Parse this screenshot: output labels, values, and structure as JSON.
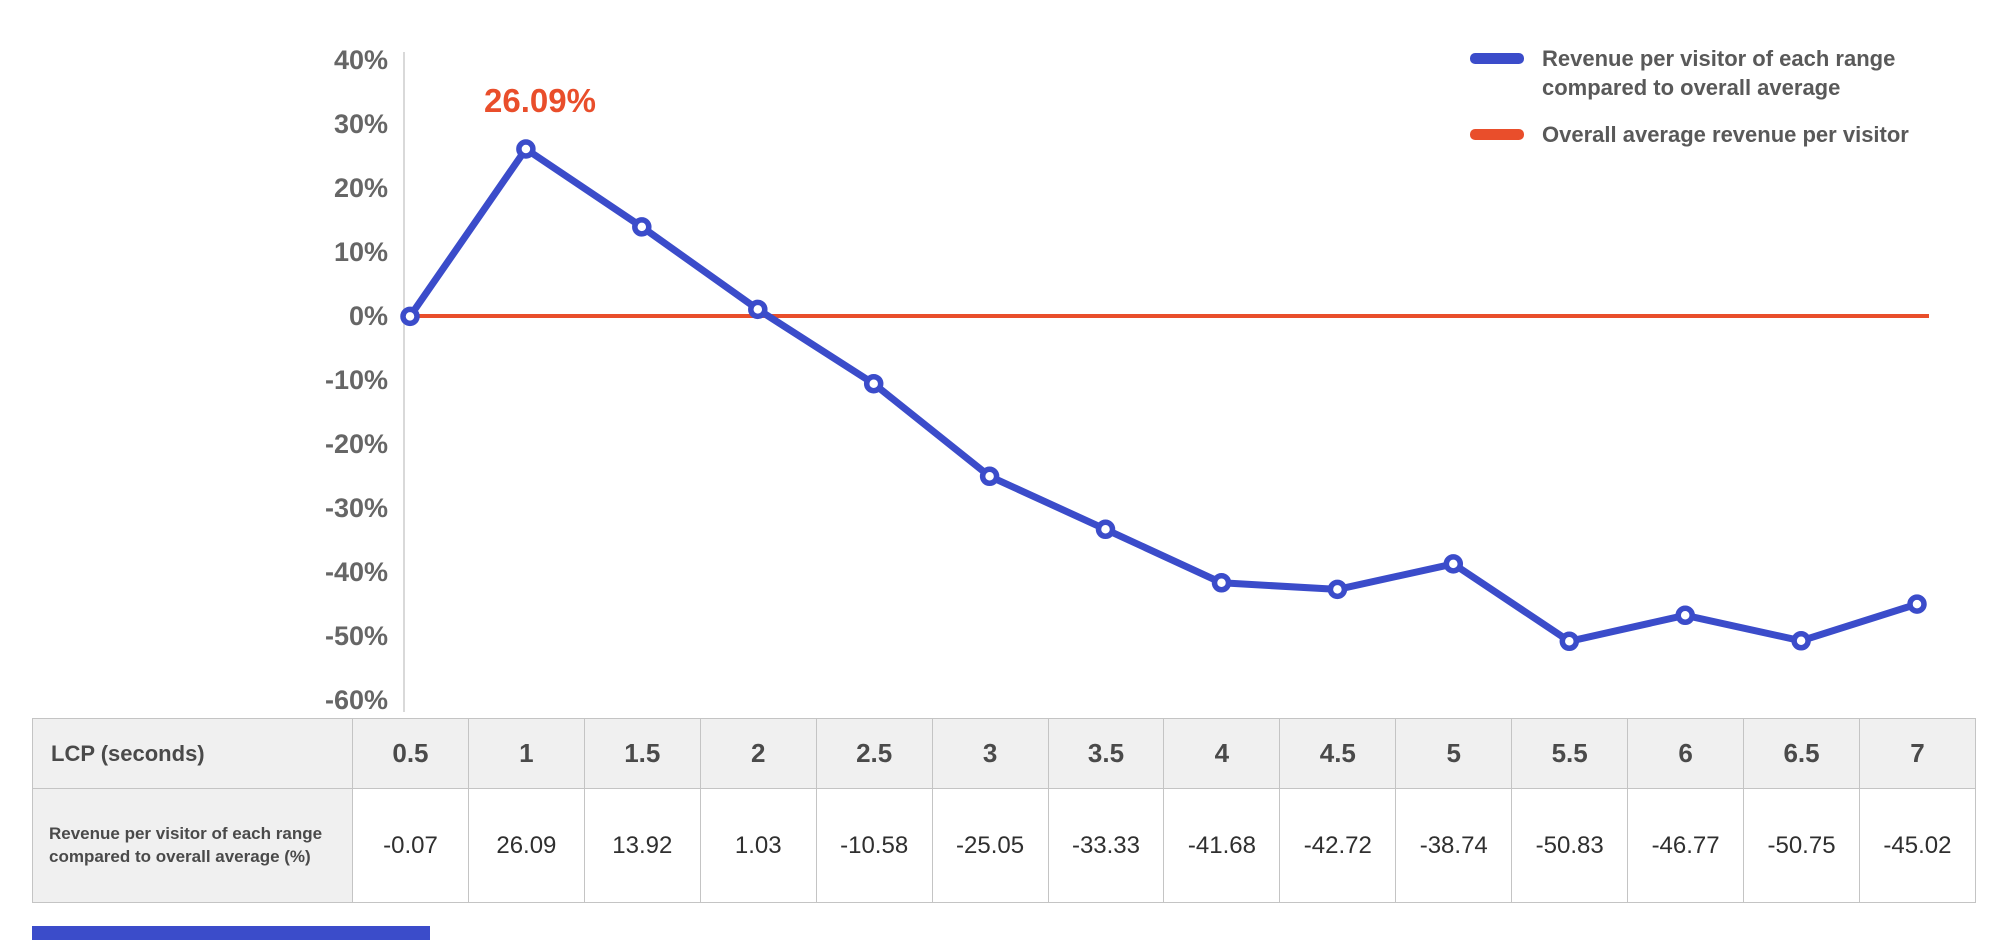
{
  "colors": {
    "blue": "#3b4cca",
    "red": "#e94e2b",
    "axis_text": "#666666",
    "axis_line": "#d9d9d9"
  },
  "chart_data": {
    "type": "line",
    "x": [
      0.5,
      1,
      1.5,
      2,
      2.5,
      3,
      3.5,
      4,
      4.5,
      5,
      5.5,
      6,
      6.5,
      7
    ],
    "xlabel": "LCP (seconds)",
    "ylabel": "",
    "ylim": [
      -60,
      40
    ],
    "yticks": [
      "40%",
      "30%",
      "20%",
      "10%",
      "0%",
      "-10%",
      "-20%",
      "-30%",
      "-40%",
      "-50%",
      "-60%"
    ],
    "grid": false,
    "legend_position": "top-right",
    "series": [
      {
        "name": "Revenue per visitor of each range compared to overall average",
        "color": "#3b4cca",
        "values": [
          -0.07,
          26.09,
          13.92,
          1.03,
          -10.58,
          -25.05,
          -33.33,
          -41.68,
          -42.72,
          -38.74,
          -50.83,
          -46.77,
          -50.75,
          -45.02
        ]
      },
      {
        "name": "Overall average revenue per visitor",
        "color": "#e94e2b",
        "constant_value": 0
      }
    ],
    "annotation": {
      "text": "26.09%",
      "at_x": 1,
      "at_y": 26.09
    }
  },
  "table": {
    "header_label": "LCP (seconds)",
    "columns": [
      "0.5",
      "1",
      "1.5",
      "2",
      "2.5",
      "3",
      "3.5",
      "4",
      "4.5",
      "5",
      "5.5",
      "6",
      "6.5",
      "7"
    ],
    "row_label": "Revenue per visitor of each range compared to overall average (%)",
    "values": [
      "-0.07",
      "26.09",
      "13.92",
      "1.03",
      "-10.58",
      "-25.05",
      "-33.33",
      "-41.68",
      "-42.72",
      "-38.74",
      "-50.83",
      "-46.77",
      "-50.75",
      "-45.02"
    ]
  }
}
